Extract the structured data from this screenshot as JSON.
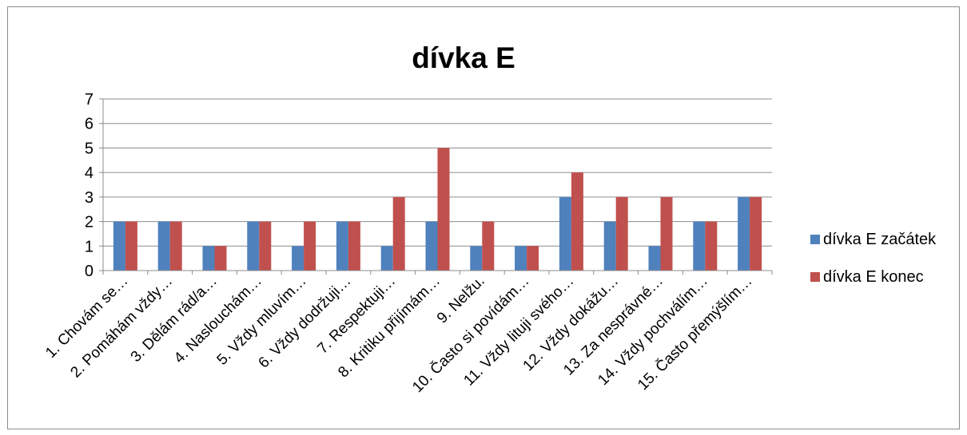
{
  "chart_data": {
    "type": "bar",
    "title": "dívka E",
    "xlabel": "",
    "ylabel": "",
    "ylim": [
      0,
      7
    ],
    "yticks": [
      0,
      1,
      2,
      3,
      4,
      5,
      6,
      7
    ],
    "grid": true,
    "legend_position": "right",
    "categories": [
      "1. Chovám se…",
      "2. Pomáhám vždy…",
      "3. Dělám rád/a…",
      "4. Naslouchám…",
      "5. Vždy mluvím…",
      "6. Vždy dodržuji…",
      "7. Respektuji…",
      "8. Kritiku přijímám…",
      "9. Nelžu.",
      "10. Často si povídám…",
      "11. Vždy lituji svého…",
      "12. Vždy dokážu…",
      "13. Za nesprávné…",
      "14. Vždy pochválím…",
      "15. Často přemýšlím…"
    ],
    "series": [
      {
        "name": "dívka E začátek",
        "color": "#4f81bd",
        "values": [
          2,
          2,
          1,
          2,
          1,
          2,
          1,
          2,
          1,
          1,
          3,
          2,
          1,
          2,
          3
        ]
      },
      {
        "name": "dívka E konec",
        "color": "#c0504d",
        "values": [
          2,
          2,
          1,
          2,
          2,
          2,
          3,
          5,
          2,
          1,
          4,
          3,
          3,
          2,
          3
        ]
      }
    ]
  }
}
